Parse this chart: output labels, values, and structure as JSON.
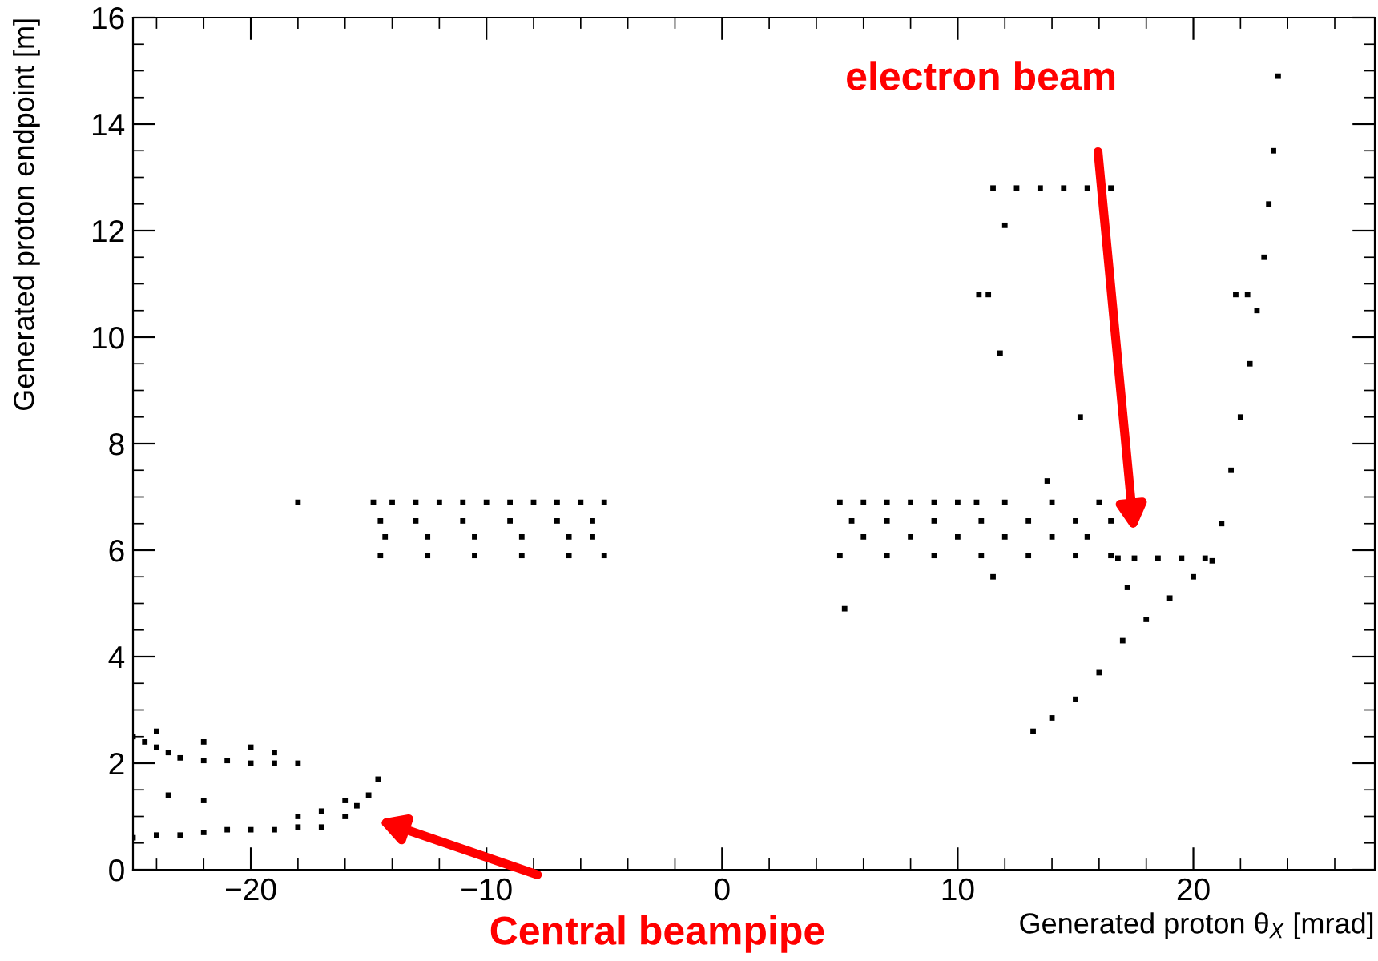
{
  "chart_data": {
    "type": "scatter",
    "xlabel": "Generated proton θ$_{X}$ [mrad]",
    "ylabel": "Generated proton endpoint [m]",
    "xlim": [
      -25,
      27.7
    ],
    "ylim": [
      0,
      16
    ],
    "xticks": [
      -20,
      -10,
      0,
      10,
      20
    ],
    "yticks": [
      0,
      2,
      4,
      6,
      8,
      10,
      12,
      14,
      16
    ],
    "grid": false,
    "marker": "square",
    "series": [
      {
        "color": "#000000",
        "x": [
          -25,
          -24.5,
          -24,
          -23.5,
          -23,
          -22,
          -21,
          -20,
          -19,
          -18,
          -24,
          -22,
          -20,
          -19,
          -25,
          -24,
          -23,
          -22,
          -21,
          -20,
          -19,
          -18,
          -17,
          -16,
          -15.5,
          -15,
          -14.6,
          -17,
          -16,
          -18,
          -18,
          -23.5,
          -22,
          -14.8,
          -14,
          -13,
          -12,
          -11,
          -10,
          -9,
          -8,
          -7,
          -6,
          -5,
          -14.5,
          -13,
          -11,
          -9,
          -7,
          -5.5,
          -14.3,
          -12.5,
          -10.5,
          -8.5,
          -6.5,
          -5.5,
          -14.5,
          -12.5,
          -10.5,
          -8.5,
          -6.5,
          -5,
          5,
          6,
          7,
          8,
          9,
          10,
          10.8,
          12,
          14,
          16,
          5.5,
          7,
          9,
          11,
          13,
          15,
          16.5,
          6,
          8,
          10,
          12,
          14,
          15.5,
          5,
          7,
          9,
          11,
          13,
          15,
          16.5,
          5.2,
          16.8,
          17.5,
          18.5,
          19.5,
          20.5,
          13.2,
          14,
          15,
          16,
          17,
          18,
          19,
          20,
          20.8,
          21.2,
          21.6,
          22,
          22.4,
          22.7,
          23,
          23.2,
          23.4,
          23.6,
          11.5,
          12.5,
          13.5,
          14.5,
          15.5,
          16.5,
          10.9,
          11.3,
          21.8,
          22.3,
          12,
          11.8,
          15.2,
          13.8,
          17.2,
          11.5
        ],
        "values": [
          2.5,
          2.4,
          2.3,
          2.2,
          2.1,
          2.05,
          2.05,
          2,
          2,
          2,
          2.6,
          2.4,
          2.3,
          2.2,
          0.6,
          0.65,
          0.65,
          0.7,
          0.75,
          0.75,
          0.75,
          0.8,
          0.8,
          1,
          1.2,
          1.4,
          1.7,
          1.1,
          1.3,
          1,
          6.9,
          1.4,
          1.3,
          6.9,
          6.9,
          6.9,
          6.9,
          6.9,
          6.9,
          6.9,
          6.9,
          6.9,
          6.9,
          6.9,
          6.55,
          6.55,
          6.55,
          6.55,
          6.55,
          6.55,
          6.25,
          6.25,
          6.25,
          6.25,
          6.25,
          6.25,
          5.9,
          5.9,
          5.9,
          5.9,
          5.9,
          5.9,
          6.9,
          6.9,
          6.9,
          6.9,
          6.9,
          6.9,
          6.9,
          6.9,
          6.9,
          6.9,
          6.55,
          6.55,
          6.55,
          6.55,
          6.55,
          6.55,
          6.55,
          6.25,
          6.25,
          6.25,
          6.25,
          6.25,
          6.25,
          5.9,
          5.9,
          5.9,
          5.9,
          5.9,
          5.9,
          5.9,
          4.9,
          5.85,
          5.85,
          5.85,
          5.85,
          5.85,
          2.6,
          2.85,
          3.2,
          3.7,
          4.3,
          4.7,
          5.1,
          5.5,
          5.8,
          6.5,
          7.5,
          8.5,
          9.5,
          10.5,
          11.5,
          12.5,
          13.5,
          14.9,
          12.8,
          12.8,
          12.8,
          12.8,
          12.8,
          12.8,
          10.8,
          10.8,
          10.8,
          10.8,
          12.1,
          9.7,
          8.5,
          7.3,
          5.3,
          5.5
        ]
      }
    ],
    "annotations": [
      "electron beam",
      "Central beampipe"
    ]
  }
}
